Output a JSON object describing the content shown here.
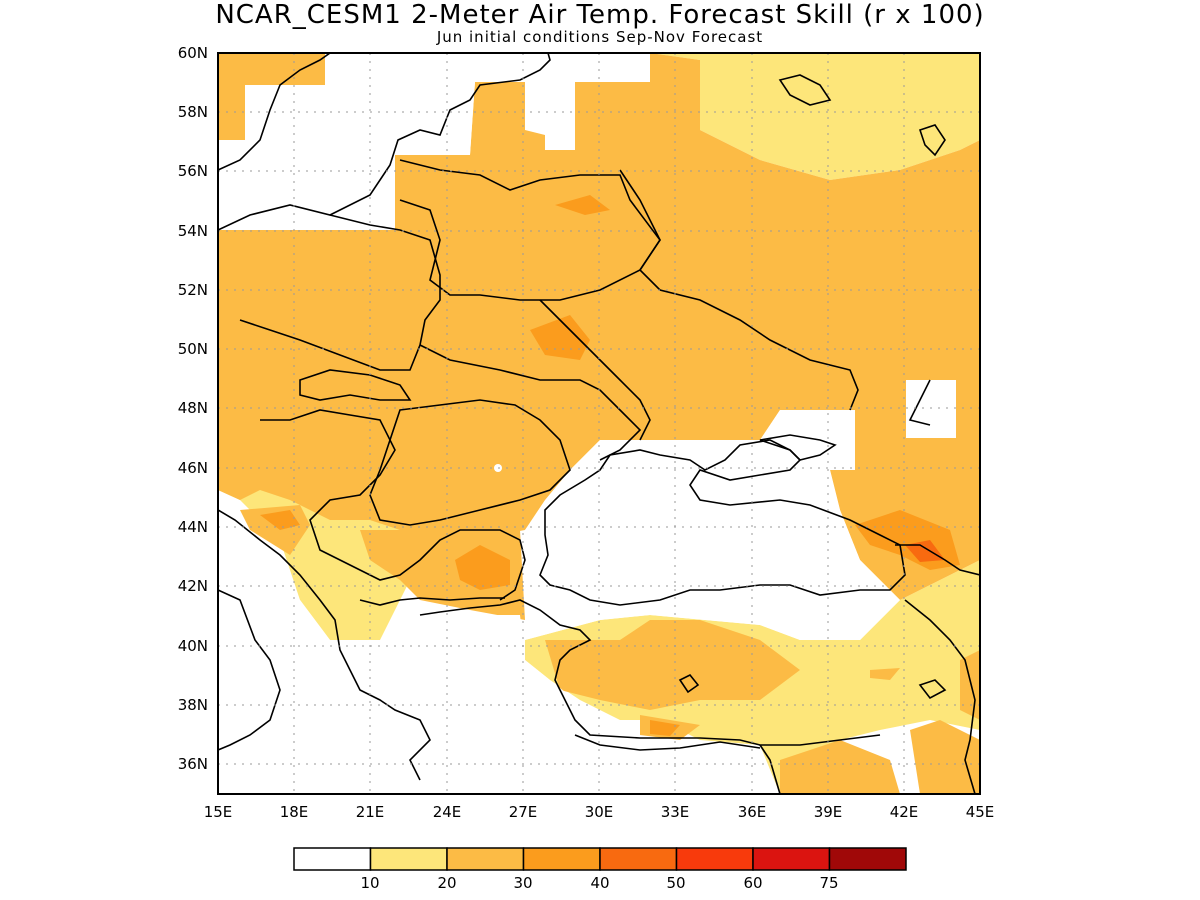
{
  "header": {
    "title": "NCAR_CESM1 2-Meter Air Temp. Forecast Skill (r x 100)",
    "subtitle": "Jun initial conditions  Sep-Nov Forecast"
  },
  "map": {
    "lon_range": [
      15,
      45
    ],
    "lat_range": [
      35,
      60
    ],
    "lon_labels": [
      "15E",
      "18E",
      "21E",
      "24E",
      "27E",
      "30E",
      "33E",
      "36E",
      "39E",
      "42E",
      "45E"
    ],
    "lat_labels": [
      "36N",
      "38N",
      "40N",
      "42N",
      "44N",
      "46N",
      "48N",
      "50N",
      "52N",
      "54N",
      "56N",
      "58N",
      "60N"
    ],
    "colors": {
      "band_10_20": "#fde67a",
      "band_20_30": "#fcbb45",
      "band_30_40": "#fb9c1d",
      "band_40_50": "#f86a10",
      "land_line": "#000000"
    }
  },
  "colorbar": {
    "labels": [
      "10",
      "20",
      "30",
      "40",
      "50",
      "60",
      "75"
    ],
    "colors": [
      "#ffffff",
      "#fde67a",
      "#fcbb45",
      "#fb9c1d",
      "#f86a10",
      "#f83a0c",
      "#db1410",
      "#a00808"
    ]
  }
}
